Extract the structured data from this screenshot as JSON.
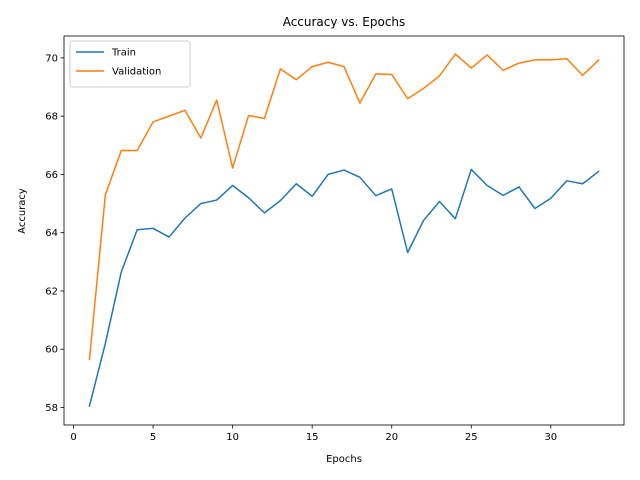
{
  "chart_data": {
    "type": "line",
    "title": "Accuracy vs. Epochs",
    "xlabel": "Epochs",
    "ylabel": "Accuracy",
    "xlim": [
      -0.6,
      34.6
    ],
    "ylim": [
      57.4,
      70.75
    ],
    "xticks": [
      0,
      5,
      10,
      15,
      20,
      25,
      30
    ],
    "yticks": [
      58,
      60,
      62,
      64,
      66,
      68,
      70
    ],
    "grid": false,
    "legend_position": "top-left",
    "x": [
      1,
      2,
      3,
      4,
      5,
      6,
      7,
      8,
      9,
      10,
      11,
      12,
      13,
      14,
      15,
      16,
      17,
      18,
      19,
      20,
      21,
      22,
      23,
      24,
      25,
      26,
      27,
      28,
      29,
      30,
      31,
      32,
      33
    ],
    "series": [
      {
        "name": "Train",
        "color": "#1f77b4",
        "values": [
          58.05,
          60.2,
          62.65,
          64.1,
          64.15,
          63.85,
          64.5,
          65.0,
          65.12,
          65.62,
          65.2,
          64.68,
          65.1,
          65.68,
          65.25,
          66.0,
          66.15,
          65.9,
          65.27,
          65.5,
          63.32,
          64.42,
          65.07,
          64.48,
          66.17,
          65.62,
          65.28,
          65.57,
          64.83,
          65.18,
          65.78,
          65.68,
          66.1
        ]
      },
      {
        "name": "Validation",
        "color": "#ff7f0e",
        "values": [
          59.65,
          65.3,
          66.82,
          66.82,
          67.8,
          68.0,
          68.2,
          67.25,
          68.55,
          66.22,
          68.02,
          67.92,
          69.62,
          69.25,
          69.7,
          69.85,
          69.7,
          68.45,
          69.45,
          69.43,
          68.6,
          68.95,
          69.38,
          70.13,
          69.65,
          70.1,
          69.57,
          69.82,
          69.93,
          69.93,
          69.97,
          69.4,
          69.92
        ]
      }
    ]
  }
}
